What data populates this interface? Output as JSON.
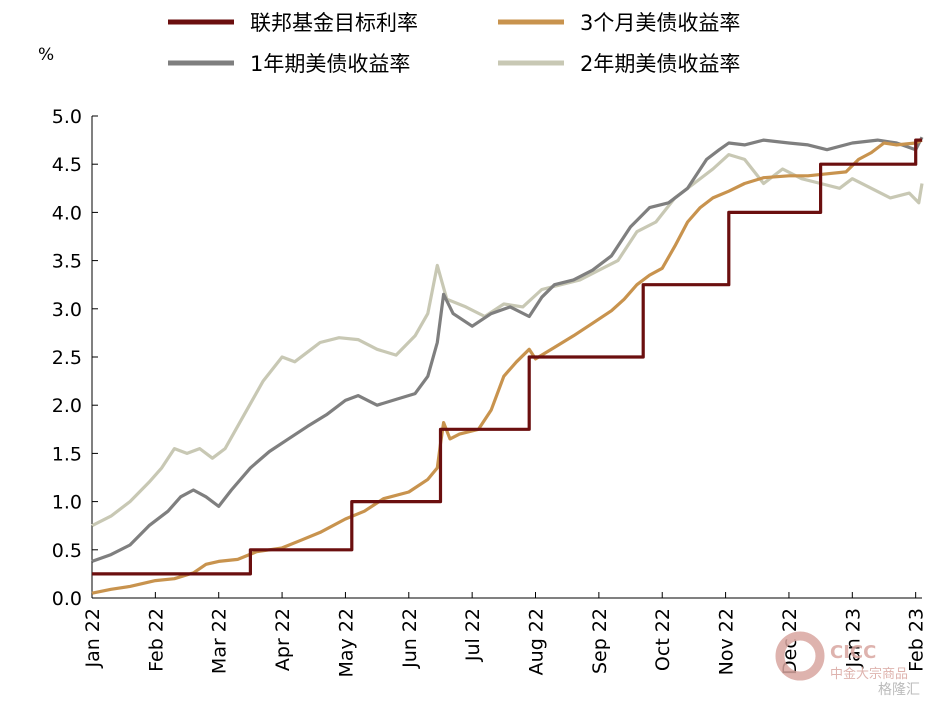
{
  "chart_data": {
    "type": "line",
    "title": "",
    "xlabel": "",
    "ylabel": "%",
    "ylim": [
      0,
      5.0
    ],
    "yticks": [
      "0.0",
      "0.5",
      "1.0",
      "1.5",
      "2.0",
      "2.5",
      "3.0",
      "3.5",
      "4.0",
      "4.5",
      "5.0"
    ],
    "x_ticks": [
      "Jan 22",
      "Feb 22",
      "Mar 22",
      "Apr 22",
      "May 22",
      "Jun 22",
      "Jul 22",
      "Aug 22",
      "Sep 22",
      "Oct 22",
      "Nov 22",
      "Dec 22",
      "Jan 23",
      "Feb 23"
    ],
    "x_unit": "month index (0 = 2022-01-01)",
    "legend_position": "top",
    "grid": false,
    "series": [
      {
        "name": "联邦基金目标利率",
        "color": "#6b0f0f",
        "step": true,
        "points": [
          [
            0,
            0.25
          ],
          [
            2.5,
            0.25
          ],
          [
            2.5,
            0.5
          ],
          [
            4.1,
            0.5
          ],
          [
            4.1,
            1.0
          ],
          [
            5.5,
            1.0
          ],
          [
            5.5,
            1.75
          ],
          [
            6.9,
            1.75
          ],
          [
            6.9,
            2.5
          ],
          [
            8.7,
            2.5
          ],
          [
            8.7,
            3.25
          ],
          [
            10.05,
            3.25
          ],
          [
            10.05,
            4.0
          ],
          [
            11.5,
            4.0
          ],
          [
            11.5,
            4.5
          ],
          [
            13.0,
            4.5
          ],
          [
            13.0,
            4.75
          ],
          [
            13.1,
            4.75
          ]
        ]
      },
      {
        "name": "3个月美债收益率",
        "color": "#c8934e",
        "points": [
          [
            0,
            0.05
          ],
          [
            0.3,
            0.09
          ],
          [
            0.6,
            0.12
          ],
          [
            1.0,
            0.18
          ],
          [
            1.3,
            0.2
          ],
          [
            1.6,
            0.26
          ],
          [
            1.8,
            0.35
          ],
          [
            2.0,
            0.38
          ],
          [
            2.3,
            0.4
          ],
          [
            2.6,
            0.48
          ],
          [
            3.0,
            0.52
          ],
          [
            3.3,
            0.6
          ],
          [
            3.6,
            0.68
          ],
          [
            4.0,
            0.82
          ],
          [
            4.3,
            0.9
          ],
          [
            4.6,
            1.03
          ],
          [
            5.0,
            1.1
          ],
          [
            5.3,
            1.23
          ],
          [
            5.45,
            1.35
          ],
          [
            5.5,
            1.6
          ],
          [
            5.55,
            1.82
          ],
          [
            5.65,
            1.65
          ],
          [
            5.8,
            1.7
          ],
          [
            6.1,
            1.75
          ],
          [
            6.3,
            1.95
          ],
          [
            6.5,
            2.3
          ],
          [
            6.7,
            2.45
          ],
          [
            6.9,
            2.58
          ],
          [
            7.0,
            2.48
          ],
          [
            7.3,
            2.6
          ],
          [
            7.6,
            2.72
          ],
          [
            7.9,
            2.85
          ],
          [
            8.2,
            2.98
          ],
          [
            8.4,
            3.1
          ],
          [
            8.6,
            3.25
          ],
          [
            8.8,
            3.35
          ],
          [
            9.0,
            3.42
          ],
          [
            9.2,
            3.65
          ],
          [
            9.4,
            3.9
          ],
          [
            9.6,
            4.05
          ],
          [
            9.8,
            4.15
          ],
          [
            10.05,
            4.22
          ],
          [
            10.3,
            4.3
          ],
          [
            10.6,
            4.36
          ],
          [
            11.0,
            4.38
          ],
          [
            11.3,
            4.38
          ],
          [
            11.6,
            4.4
          ],
          [
            11.9,
            4.42
          ],
          [
            12.1,
            4.55
          ],
          [
            12.3,
            4.62
          ],
          [
            12.5,
            4.72
          ],
          [
            12.7,
            4.7
          ],
          [
            13.0,
            4.72
          ],
          [
            13.1,
            4.75
          ]
        ]
      },
      {
        "name": "1年期美债收益率",
        "color": "#7f7f7f",
        "points": [
          [
            0,
            0.38
          ],
          [
            0.3,
            0.45
          ],
          [
            0.6,
            0.55
          ],
          [
            0.9,
            0.75
          ],
          [
            1.2,
            0.9
          ],
          [
            1.4,
            1.05
          ],
          [
            1.6,
            1.12
          ],
          [
            1.8,
            1.05
          ],
          [
            2.0,
            0.95
          ],
          [
            2.2,
            1.12
          ],
          [
            2.5,
            1.35
          ],
          [
            2.8,
            1.52
          ],
          [
            3.1,
            1.65
          ],
          [
            3.4,
            1.78
          ],
          [
            3.7,
            1.9
          ],
          [
            4.0,
            2.05
          ],
          [
            4.2,
            2.1
          ],
          [
            4.5,
            2.0
          ],
          [
            4.8,
            2.06
          ],
          [
            5.1,
            2.12
          ],
          [
            5.3,
            2.3
          ],
          [
            5.45,
            2.65
          ],
          [
            5.55,
            3.15
          ],
          [
            5.7,
            2.95
          ],
          [
            6.0,
            2.82
          ],
          [
            6.3,
            2.95
          ],
          [
            6.6,
            3.02
          ],
          [
            6.9,
            2.92
          ],
          [
            7.1,
            3.12
          ],
          [
            7.3,
            3.25
          ],
          [
            7.6,
            3.3
          ],
          [
            7.9,
            3.4
          ],
          [
            8.2,
            3.55
          ],
          [
            8.5,
            3.85
          ],
          [
            8.8,
            4.05
          ],
          [
            9.1,
            4.1
          ],
          [
            9.4,
            4.25
          ],
          [
            9.7,
            4.55
          ],
          [
            9.9,
            4.65
          ],
          [
            10.05,
            4.72
          ],
          [
            10.3,
            4.7
          ],
          [
            10.6,
            4.75
          ],
          [
            11.0,
            4.72
          ],
          [
            11.3,
            4.7
          ],
          [
            11.6,
            4.65
          ],
          [
            12.0,
            4.72
          ],
          [
            12.4,
            4.75
          ],
          [
            12.7,
            4.72
          ],
          [
            13.0,
            4.65
          ],
          [
            13.1,
            4.78
          ]
        ]
      },
      {
        "name": "2年期美债收益率",
        "color": "#c8c8b4",
        "points": [
          [
            0,
            0.75
          ],
          [
            0.3,
            0.85
          ],
          [
            0.6,
            1.0
          ],
          [
            0.9,
            1.2
          ],
          [
            1.1,
            1.35
          ],
          [
            1.3,
            1.55
          ],
          [
            1.5,
            1.5
          ],
          [
            1.7,
            1.55
          ],
          [
            1.9,
            1.45
          ],
          [
            2.1,
            1.55
          ],
          [
            2.4,
            1.9
          ],
          [
            2.7,
            2.25
          ],
          [
            3.0,
            2.5
          ],
          [
            3.2,
            2.45
          ],
          [
            3.4,
            2.55
          ],
          [
            3.6,
            2.65
          ],
          [
            3.9,
            2.7
          ],
          [
            4.2,
            2.68
          ],
          [
            4.5,
            2.58
          ],
          [
            4.8,
            2.52
          ],
          [
            5.1,
            2.72
          ],
          [
            5.3,
            2.95
          ],
          [
            5.45,
            3.45
          ],
          [
            5.6,
            3.1
          ],
          [
            5.9,
            3.02
          ],
          [
            6.2,
            2.92
          ],
          [
            6.5,
            3.05
          ],
          [
            6.8,
            3.02
          ],
          [
            7.1,
            3.2
          ],
          [
            7.4,
            3.25
          ],
          [
            7.7,
            3.3
          ],
          [
            8.0,
            3.4
          ],
          [
            8.3,
            3.5
          ],
          [
            8.6,
            3.8
          ],
          [
            8.9,
            3.9
          ],
          [
            9.2,
            4.15
          ],
          [
            9.5,
            4.3
          ],
          [
            9.8,
            4.45
          ],
          [
            10.05,
            4.6
          ],
          [
            10.3,
            4.55
          ],
          [
            10.6,
            4.3
          ],
          [
            10.9,
            4.45
          ],
          [
            11.2,
            4.35
          ],
          [
            11.5,
            4.3
          ],
          [
            11.8,
            4.25
          ],
          [
            12.0,
            4.35
          ],
          [
            12.3,
            4.25
          ],
          [
            12.6,
            4.15
          ],
          [
            12.9,
            4.2
          ],
          [
            13.05,
            4.1
          ],
          [
            13.1,
            4.3
          ]
        ]
      }
    ]
  },
  "watermark": {
    "line1": "CICC",
    "line2": "中金大宗商品",
    "line3": "格隆汇",
    "color": "#d9a6a0"
  }
}
